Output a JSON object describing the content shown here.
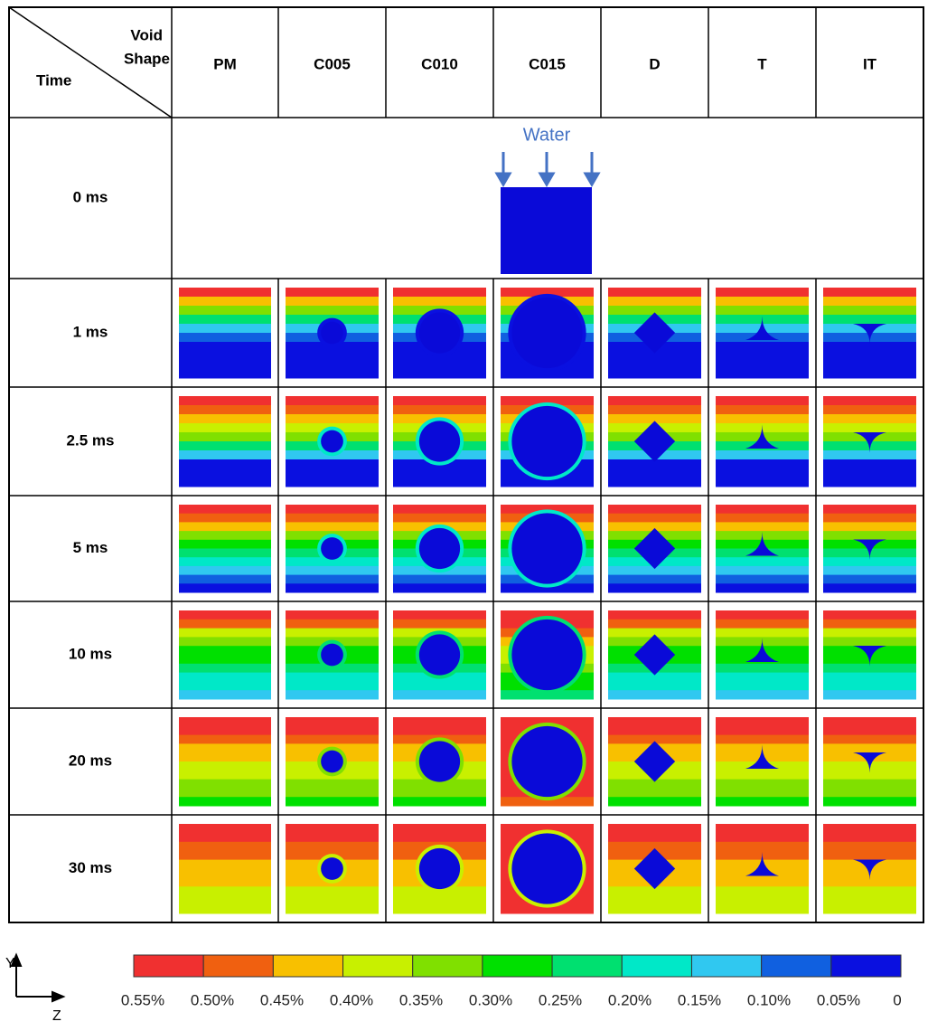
{
  "header": {
    "corner": [
      "Void",
      "Shape"
    ],
    "row_header": "Time",
    "columns": [
      "PM",
      "C005",
      "C010",
      "C015",
      "D",
      "T",
      "IT"
    ]
  },
  "rows": [
    "0 ms",
    "1 ms",
    "2.5 ms",
    "5 ms",
    "10 ms",
    "20 ms",
    "30 ms"
  ],
  "water_label": "Water",
  "colorbar": {
    "labels": [
      "0.55%",
      "0.50%",
      "0.45%",
      "0.40%",
      "0.35%",
      "0.30%",
      "0.25%",
      "0.20%",
      "0.15%",
      "0.10%",
      "0.05%",
      "0"
    ]
  },
  "axes": {
    "vertical": "Y",
    "horizontal": "Z"
  }
}
